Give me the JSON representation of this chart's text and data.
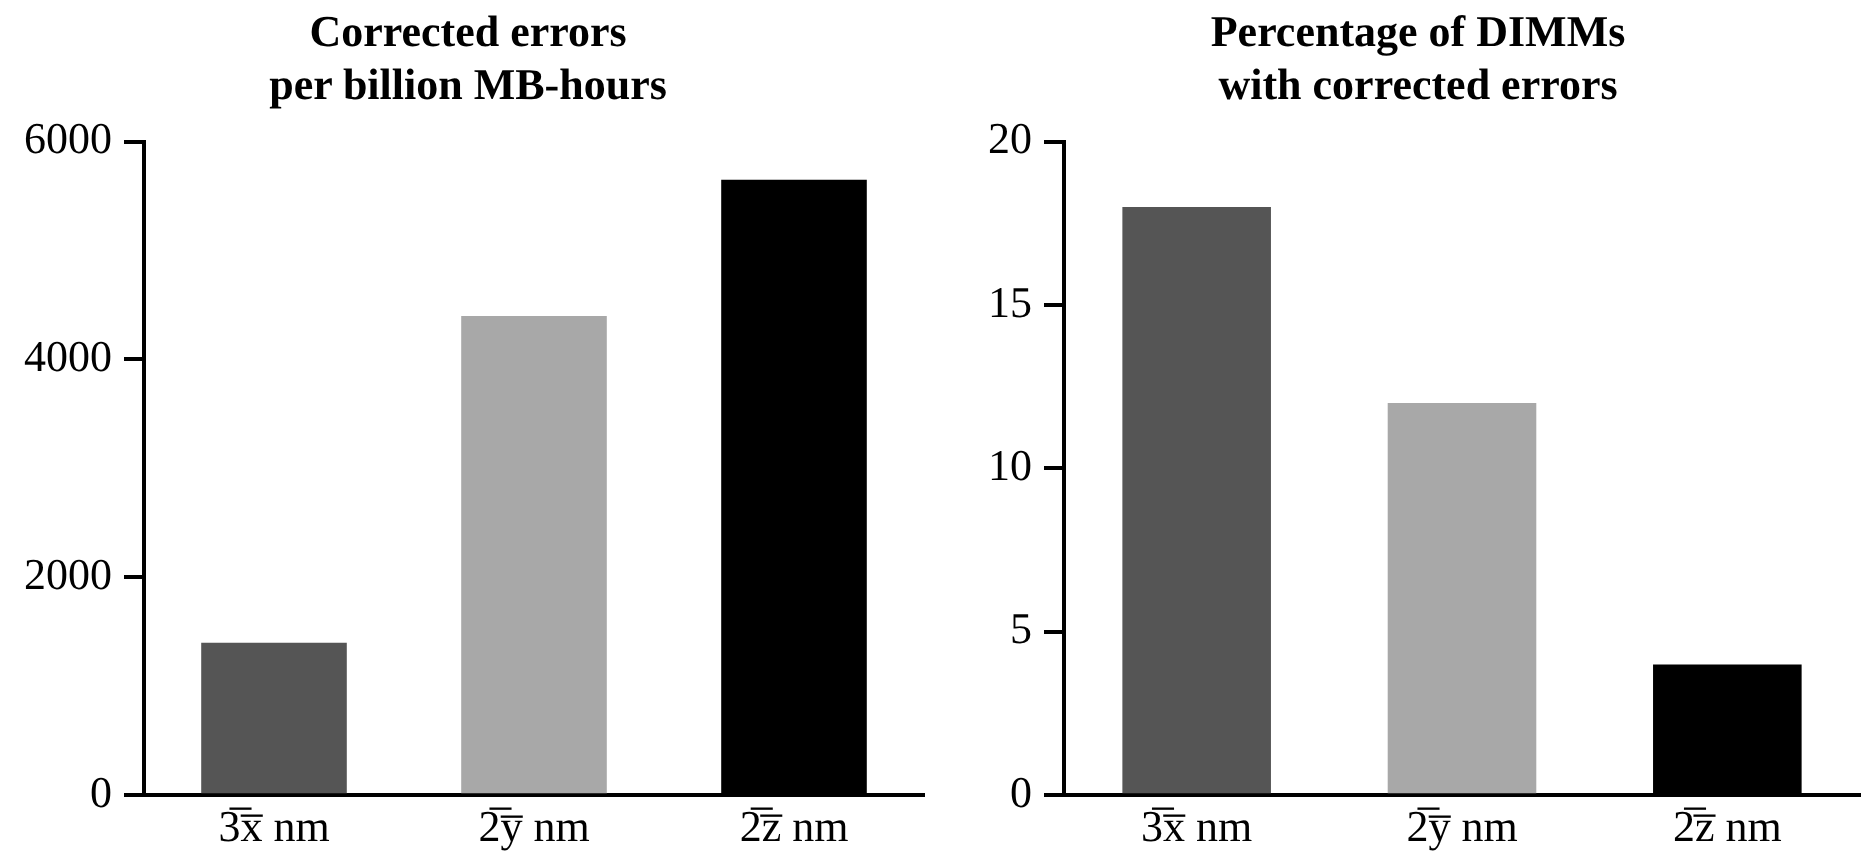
{
  "chart_data": [
    {
      "type": "bar",
      "title": "Corrected errors\nper billion MB-hours",
      "categories": [
        "3̅x̅ nm",
        "2̅y̅ nm",
        "2̅z̅ nm"
      ],
      "values": [
        1400,
        4400,
        5650
      ],
      "colors": [
        "#555555",
        "#a8a8a8",
        "#000000"
      ],
      "ylim": [
        0,
        6000
      ],
      "yticks": [
        0,
        2000,
        4000,
        6000
      ],
      "grid": false,
      "legend": false
    },
    {
      "type": "bar",
      "title": "Percentage of DIMMs\nwith corrected errors",
      "categories": [
        "3̅x̅ nm",
        "2̅y̅ nm",
        "2̅z̅ nm"
      ],
      "values": [
        18,
        12,
        4
      ],
      "colors": [
        "#555555",
        "#a8a8a8",
        "#000000"
      ],
      "ylim": [
        0,
        20
      ],
      "yticks": [
        0,
        5,
        10,
        15,
        20
      ],
      "grid": false,
      "legend": false
    }
  ]
}
